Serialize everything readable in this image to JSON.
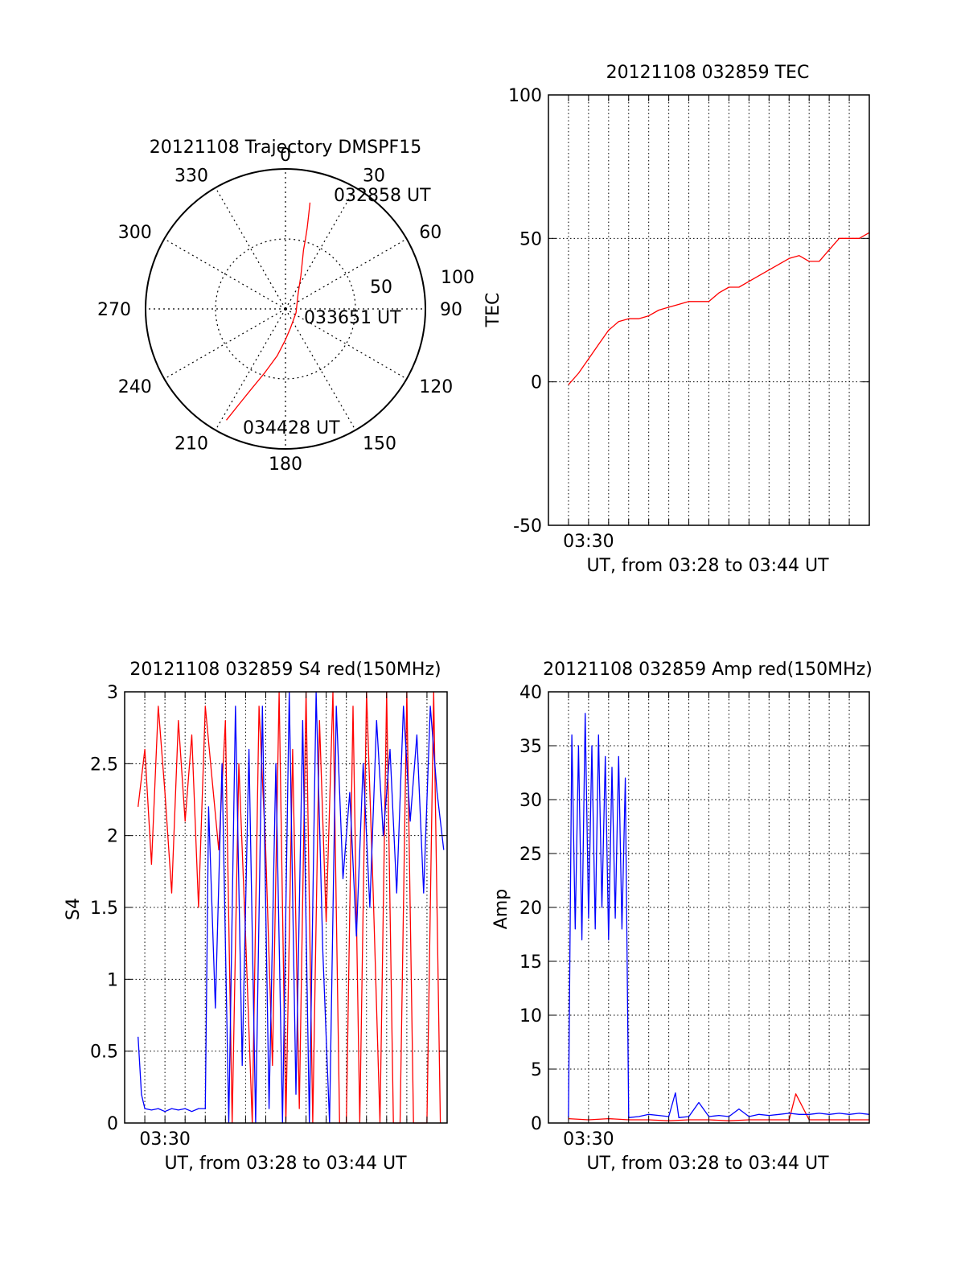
{
  "colors": {
    "red": "#ff0000",
    "blue": "#0000ff",
    "axis": "#000000",
    "grid": "#000000",
    "background": "#ffffff"
  },
  "chart_data": [
    {
      "id": "trajectory",
      "type": "polar",
      "title": "20121108 Trajectory DMSPF15",
      "angle_labels": [
        "0",
        "30",
        "60",
        "90",
        "120",
        "150",
        "180",
        "210",
        "240",
        "270",
        "300",
        "330"
      ],
      "radius_labels": [
        "50",
        "100"
      ],
      "rlim": [
        0,
        100
      ],
      "grid": true,
      "series": [
        {
          "color": "#ff0000",
          "points": [
            {
              "azimuth": 13,
              "radius": 78
            },
            {
              "azimuth": 14,
              "radius": 68
            },
            {
              "azimuth": 15,
              "radius": 60
            },
            {
              "azimuth": 16,
              "radius": 52
            },
            {
              "azimuth": 17,
              "radius": 44
            },
            {
              "azimuth": 20,
              "radius": 35
            },
            {
              "azimuth": 25,
              "radius": 26
            },
            {
              "azimuth": 40,
              "radius": 14
            },
            {
              "azimuth": 110,
              "radius": 8
            },
            {
              "azimuth": 165,
              "radius": 14
            },
            {
              "azimuth": 180,
              "radius": 22
            },
            {
              "azimuth": 190,
              "radius": 34
            },
            {
              "azimuth": 198,
              "radius": 48
            },
            {
              "azimuth": 203,
              "radius": 62
            },
            {
              "azimuth": 206,
              "radius": 76
            },
            {
              "azimuth": 208,
              "radius": 90
            }
          ]
        }
      ],
      "annotations": [
        {
          "text": "032858 UT",
          "azimuth": 21,
          "radius": 84
        },
        {
          "text": "033651 UT",
          "azimuth": 110,
          "radius": 25
        },
        {
          "text": "034428 UT",
          "azimuth": 190,
          "radius": 86
        }
      ]
    },
    {
      "id": "tec",
      "type": "line",
      "title": "20121108 032859 TEC",
      "xlabel": "UT, from 03:28 to 03:44 UT",
      "ylabel": "TEC",
      "x_tick_labels": [
        {
          "x": "03:30",
          "label": "03:30"
        }
      ],
      "xlim": [
        "03:28",
        "03:44"
      ],
      "ylim": [
        -50,
        100
      ],
      "y_ticks": [
        -50,
        0,
        50,
        100
      ],
      "grid": true,
      "series": [
        {
          "color": "#ff0000",
          "x": [
            "03:29:00",
            "03:29:30",
            "03:30:00",
            "03:30:30",
            "03:31:00",
            "03:31:30",
            "03:32:00",
            "03:32:30",
            "03:33:00",
            "03:33:30",
            "03:34:00",
            "03:34:30",
            "03:35:00",
            "03:35:30",
            "03:36:00",
            "03:36:30",
            "03:37:00",
            "03:37:30",
            "03:38:00",
            "03:38:30",
            "03:39:00",
            "03:39:30",
            "03:40:00",
            "03:40:30",
            "03:41:00",
            "03:41:30",
            "03:42:00",
            "03:42:30",
            "03:43:00",
            "03:43:30",
            "03:44:00"
          ],
          "values": [
            -1,
            3,
            8,
            13,
            18,
            21,
            22,
            22,
            23,
            25,
            26,
            27,
            28,
            28,
            28,
            31,
            33,
            33,
            35,
            37,
            39,
            41,
            43,
            44,
            42,
            42,
            46,
            50,
            50,
            50,
            52
          ]
        }
      ]
    },
    {
      "id": "s4",
      "type": "line",
      "title": "20121108 032859 S4 red(150MHz)",
      "xlabel": "UT, from 03:28 to 03:44 UT",
      "ylabel": "S4",
      "x_tick_labels": [
        {
          "x": "03:30",
          "label": "03:30"
        }
      ],
      "xlim": [
        "03:28",
        "03:44"
      ],
      "ylim": [
        0,
        3
      ],
      "y_ticks": [
        0,
        0.5,
        1,
        1.5,
        2,
        2.5,
        3
      ],
      "y_tick_labels": [
        "0",
        "0.5",
        "1",
        "1.5",
        "2",
        "2.5",
        "3"
      ],
      "grid": true,
      "series": [
        {
          "color": "#ff0000",
          "x": [
            "03:28:40",
            "03:29:00",
            "03:29:20",
            "03:29:40",
            "03:30:00",
            "03:30:20",
            "03:30:40",
            "03:31:00",
            "03:31:20",
            "03:31:40",
            "03:32:00",
            "03:32:20",
            "03:32:40",
            "03:33:00",
            "03:33:20",
            "03:33:40",
            "03:34:00",
            "03:34:20",
            "03:34:40",
            "03:35:00",
            "03:35:20",
            "03:35:40",
            "03:36:00",
            "03:36:20",
            "03:36:40",
            "03:37:00",
            "03:37:20",
            "03:37:40",
            "03:38:00",
            "03:38:20",
            "03:38:40",
            "03:39:00",
            "03:39:20",
            "03:39:40",
            "03:40:00",
            "03:40:20",
            "03:40:40",
            "03:41:00",
            "03:41:20",
            "03:41:40",
            "03:42:00",
            "03:42:20",
            "03:42:40",
            "03:43:00",
            "03:43:20",
            "03:43:40"
          ],
          "values": [
            2.2,
            2.6,
            1.8,
            2.9,
            2.3,
            1.6,
            2.8,
            2.1,
            2.7,
            1.5,
            2.9,
            2.4,
            1.9,
            2.8,
            0,
            2.5,
            1.3,
            0,
            2.9,
            1.9,
            0.4,
            3,
            0,
            2.6,
            0.1,
            3,
            0,
            2.8,
            1.4,
            3,
            0,
            0,
            2.9,
            0,
            3,
            1.6,
            0,
            3,
            0,
            0,
            3,
            0,
            0,
            0,
            3,
            0
          ]
        },
        {
          "color": "#0000ff",
          "x": [
            "03:28:40",
            "03:28:50",
            "03:29:00",
            "03:29:20",
            "03:29:40",
            "03:30:00",
            "03:30:20",
            "03:30:40",
            "03:31:00",
            "03:31:20",
            "03:31:40",
            "03:32:00",
            "03:32:10",
            "03:32:30",
            "03:32:50",
            "03:33:10",
            "03:33:30",
            "03:33:50",
            "03:34:10",
            "03:34:30",
            "03:34:50",
            "03:35:10",
            "03:35:30",
            "03:35:50",
            "03:36:10",
            "03:36:30",
            "03:36:50",
            "03:37:10",
            "03:37:30",
            "03:37:50",
            "03:38:10",
            "03:38:30",
            "03:38:50",
            "03:39:10",
            "03:39:30",
            "03:39:50",
            "03:40:10",
            "03:40:30",
            "03:40:50",
            "03:41:10",
            "03:41:30",
            "03:41:50",
            "03:42:10",
            "03:42:30",
            "03:42:50",
            "03:43:10",
            "03:43:30",
            "03:43:50"
          ],
          "values": [
            0.6,
            0.2,
            0.1,
            0.09,
            0.1,
            0.08,
            0.1,
            0.09,
            0.1,
            0.08,
            0.1,
            0.1,
            2.2,
            0.8,
            2.5,
            0,
            2.9,
            0.4,
            2.6,
            0,
            2.9,
            0.1,
            2.5,
            0,
            3,
            0.2,
            2.8,
            0,
            3,
            1.2,
            0,
            2.9,
            1.7,
            2.3,
            1.3,
            2.5,
            1.5,
            2.8,
            2.0,
            2.6,
            1.6,
            2.9,
            2.1,
            2.7,
            1.6,
            2.9,
            2.3,
            1.9
          ]
        }
      ]
    },
    {
      "id": "amp",
      "type": "line",
      "title": "20121108 032859 Amp red(150MHz)",
      "xlabel": "UT, from 03:28 to 03:44 UT",
      "ylabel": "Amp",
      "x_tick_labels": [
        {
          "x": "03:30",
          "label": "03:30"
        }
      ],
      "xlim": [
        "03:28",
        "03:44"
      ],
      "ylim": [
        0,
        40
      ],
      "y_ticks": [
        0,
        5,
        10,
        15,
        20,
        25,
        30,
        35,
        40
      ],
      "grid": true,
      "series": [
        {
          "color": "#ff0000",
          "x": [
            "03:29:00",
            "03:30:00",
            "03:31:00",
            "03:32:00",
            "03:33:00",
            "03:34:00",
            "03:35:00",
            "03:36:00",
            "03:37:00",
            "03:38:00",
            "03:39:00",
            "03:40:00",
            "03:40:20",
            "03:41:00",
            "03:42:00",
            "03:43:00",
            "03:44:00"
          ],
          "values": [
            0.4,
            0.3,
            0.4,
            0.3,
            0.3,
            0.2,
            0.3,
            0.3,
            0.2,
            0.3,
            0.3,
            0.3,
            2.7,
            0.3,
            0.3,
            0.3,
            0.3
          ]
        },
        {
          "color": "#0000ff",
          "x": [
            "03:29:00",
            "03:29:10",
            "03:29:20",
            "03:29:30",
            "03:29:40",
            "03:29:50",
            "03:30:00",
            "03:30:10",
            "03:30:20",
            "03:30:30",
            "03:30:40",
            "03:30:50",
            "03:31:00",
            "03:31:10",
            "03:31:20",
            "03:31:30",
            "03:31:40",
            "03:31:50",
            "03:32:00",
            "03:32:30",
            "03:33:00",
            "03:33:30",
            "03:34:00",
            "03:34:20",
            "03:34:30",
            "03:35:00",
            "03:35:30",
            "03:36:00",
            "03:36:30",
            "03:37:00",
            "03:37:30",
            "03:38:00",
            "03:38:30",
            "03:39:00",
            "03:39:30",
            "03:40:00",
            "03:40:30",
            "03:41:00",
            "03:41:30",
            "03:42:00",
            "03:42:30",
            "03:43:00",
            "03:43:30",
            "03:44:00"
          ],
          "values": [
            0.5,
            36,
            18,
            35,
            17,
            38,
            19,
            35,
            18,
            36,
            20,
            34,
            17,
            33,
            19,
            34,
            18,
            32,
            0.5,
            0.6,
            0.8,
            0.7,
            0.6,
            2.8,
            0.5,
            0.6,
            1.9,
            0.6,
            0.7,
            0.6,
            1.3,
            0.6,
            0.8,
            0.7,
            0.8,
            0.9,
            0.8,
            0.8,
            0.9,
            0.8,
            0.9,
            0.8,
            0.9,
            0.8
          ]
        }
      ]
    }
  ]
}
